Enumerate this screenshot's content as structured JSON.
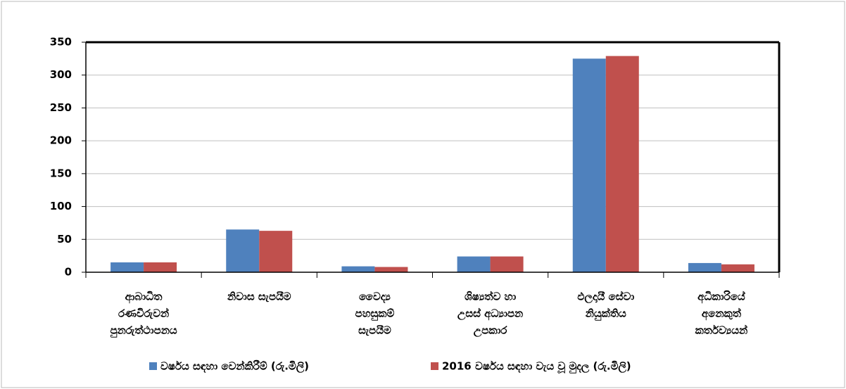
{
  "chart_data": {
    "type": "bar",
    "categories": [
      [
        "ආබාධිත",
        "රණවිරුවන්",
        "පුනරුත්ථාපනය"
      ],
      [
        "නිවාස සැපයීම"
      ],
      [
        "වෛද්‍ය",
        "පහසුකම්",
        "සැපයීම"
      ],
      [
        "ශිෂ්‍යත්ව හා",
        "උසස් අධ්‍යාපන",
        "උපකාර"
      ],
      [
        "ඵලදායී සේවා",
        "නියුක්තිය"
      ],
      [
        "අධිකාරියේ",
        "අනෙකුත්",
        "කර්තව්‍යයන්"
      ]
    ],
    "series": [
      {
        "name": "වර්ෂය සඳහා වෙන්කිරීම් (රු.මිලි)",
        "color": "#4f81bd",
        "values": [
          15,
          65,
          9,
          24,
          325,
          14
        ]
      },
      {
        "name": "2016 වර්ෂය සඳහා වැය වූ මුදල (රු.මිලි)",
        "color": "#c0504d",
        "values": [
          15,
          63,
          8,
          24,
          329,
          12
        ]
      }
    ],
    "ylim": [
      0,
      350
    ],
    "yticks": [
      0,
      50,
      100,
      150,
      200,
      250,
      300,
      350
    ],
    "grid": true
  }
}
